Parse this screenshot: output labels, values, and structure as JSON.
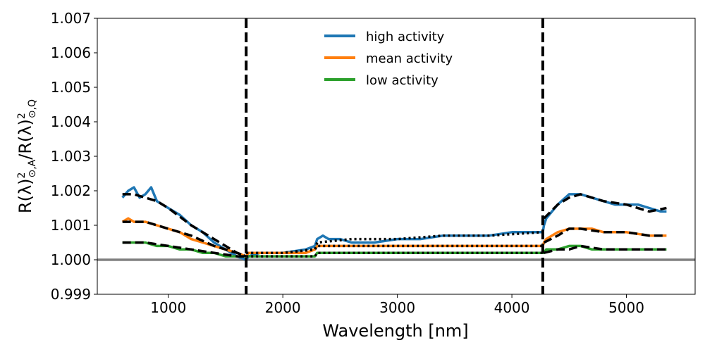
{
  "chart_data": {
    "type": "line",
    "title": "",
    "xlabel": "Wavelength [nm]",
    "ylabel": "R(λ)²⊙,A / R(λ)²⊙,Q",
    "ylabel_parts": {
      "a": "R(λ)",
      "b": "⊙,A",
      "c": "/R(λ)",
      "d": "⊙,Q",
      "sq": "2"
    },
    "xlim": [
      380,
      5600
    ],
    "ylim": [
      0.999,
      1.007
    ],
    "xticks": [
      1000,
      2000,
      3000,
      4000,
      5000
    ],
    "xtick_labels": [
      "1000",
      "2000",
      "3000",
      "4000",
      "5000"
    ],
    "yticks": [
      0.999,
      1.0,
      1.001,
      1.002,
      1.003,
      1.004,
      1.005,
      1.006,
      1.007
    ],
    "ytick_labels": [
      "0.999",
      "1.000",
      "1.001",
      "1.002",
      "1.003",
      "1.004",
      "1.005",
      "1.006",
      "1.007"
    ],
    "grid": false,
    "legend_position": "top-center",
    "reference_line": {
      "y": 1.0,
      "color": "#808080"
    },
    "vertical_lines": [
      {
        "x": 1680,
        "style": "dashed"
      },
      {
        "x": 4270,
        "style": "dashed"
      }
    ],
    "series": [
      {
        "name": "high activity",
        "color": "#1f77b4",
        "x": [
          600,
          650,
          700,
          750,
          800,
          850,
          900,
          1000,
          1100,
          1200,
          1300,
          1400,
          1500,
          1600,
          1680,
          1700,
          1800,
          2000,
          2200,
          2280,
          2300,
          2350,
          2400,
          2500,
          2600,
          2800,
          3000,
          3200,
          3400,
          3600,
          3800,
          4000,
          4200,
          4270,
          4280,
          4300,
          4400,
          4500,
          4600,
          4700,
          4800,
          4900,
          5000,
          5100,
          5200,
          5300,
          5350
        ],
        "values": [
          1.0018,
          1.002,
          1.0021,
          1.0018,
          1.0019,
          1.0021,
          1.0017,
          1.0015,
          1.0013,
          1.001,
          1.0008,
          1.0005,
          1.0003,
          1.0001,
          1.0,
          1.0001,
          1.0002,
          1.0002,
          1.0003,
          1.0004,
          1.0006,
          1.0007,
          1.0006,
          1.0006,
          1.0005,
          1.0005,
          1.0006,
          1.0006,
          1.0007,
          1.0007,
          1.0007,
          1.0008,
          1.0008,
          1.0008,
          1.001,
          1.0012,
          1.0016,
          1.0019,
          1.0019,
          1.0018,
          1.0017,
          1.0016,
          1.0016,
          1.0016,
          1.0015,
          1.0014,
          1.0014
        ]
      },
      {
        "name": "mean activity",
        "color": "#ff7f0e",
        "x": [
          600,
          650,
          700,
          800,
          900,
          1000,
          1100,
          1200,
          1300,
          1400,
          1500,
          1600,
          1680,
          1700,
          1800,
          2000,
          2200,
          2280,
          2300,
          2400,
          2600,
          2800,
          3000,
          3200,
          3400,
          3600,
          3800,
          4000,
          4200,
          4270,
          4280,
          4300,
          4400,
          4500,
          4600,
          4700,
          4800,
          5000,
          5200,
          5350
        ],
        "values": [
          1.0011,
          1.0012,
          1.0011,
          1.0011,
          1.001,
          1.0009,
          1.0008,
          1.0006,
          1.0005,
          1.0004,
          1.0003,
          1.0002,
          1.0001,
          1.0002,
          1.0002,
          1.0002,
          1.0002,
          1.0003,
          1.0004,
          1.0004,
          1.0004,
          1.0004,
          1.0004,
          1.0004,
          1.0004,
          1.0004,
          1.0004,
          1.0004,
          1.0004,
          1.0004,
          1.0005,
          1.0006,
          1.0008,
          1.0009,
          1.0009,
          1.0009,
          1.0008,
          1.0008,
          1.0007,
          1.0007
        ]
      },
      {
        "name": "low activity",
        "color": "#2ca02c",
        "x": [
          600,
          700,
          800,
          900,
          1000,
          1100,
          1200,
          1300,
          1400,
          1500,
          1600,
          1680,
          1700,
          1800,
          2000,
          2200,
          2280,
          2300,
          2400,
          2600,
          2800,
          3000,
          3200,
          3400,
          3600,
          3800,
          4000,
          4200,
          4270,
          4280,
          4300,
          4400,
          4500,
          4600,
          4700,
          4800,
          5000,
          5200,
          5350
        ],
        "values": [
          1.0005,
          1.0005,
          1.0005,
          1.0004,
          1.0004,
          1.0003,
          1.0003,
          1.0002,
          1.0002,
          1.0001,
          1.0001,
          1.0001,
          1.0001,
          1.0001,
          1.0001,
          1.0001,
          1.0001,
          1.0002,
          1.0002,
          1.0002,
          1.0002,
          1.0002,
          1.0002,
          1.0002,
          1.0002,
          1.0002,
          1.0002,
          1.0002,
          1.0002,
          1.0002,
          1.0003,
          1.0003,
          1.0004,
          1.0004,
          1.0003,
          1.0003,
          1.0003,
          1.0003,
          1.0003
        ]
      }
    ],
    "model_fits": [
      {
        "name": "high activity fit",
        "style": "dashed",
        "color": "#000000",
        "x": [
          600,
          700,
          800,
          900,
          1000,
          1200,
          1400,
          1600,
          1680
        ],
        "values": [
          1.0019,
          1.0019,
          1.0018,
          1.0017,
          1.0015,
          1.001,
          1.0006,
          1.0002,
          1.0001
        ]
      },
      {
        "name": "high activity fit (mid)",
        "style": "dotted",
        "color": "#000000",
        "x": [
          1680,
          2000,
          2280,
          2300,
          2600,
          3000,
          3400,
          3800,
          4270
        ],
        "values": [
          1.0002,
          1.0002,
          1.0003,
          1.0005,
          1.0006,
          1.0006,
          1.0007,
          1.0007,
          1.0008
        ]
      },
      {
        "name": "high activity fit (ir)",
        "style": "dashed",
        "color": "#000000",
        "x": [
          4280,
          4400,
          4500,
          4600,
          4700,
          4800,
          5000,
          5200,
          5350
        ],
        "values": [
          1.0012,
          1.0016,
          1.0018,
          1.0019,
          1.0018,
          1.0017,
          1.0016,
          1.0014,
          1.0015
        ]
      },
      {
        "name": "mean activity fit",
        "style": "dashed",
        "color": "#000000",
        "x": [
          600,
          700,
          800,
          900,
          1000,
          1200,
          1400,
          1600,
          1680
        ],
        "values": [
          1.0011,
          1.0011,
          1.0011,
          1.001,
          1.0009,
          1.0007,
          1.0004,
          1.0002,
          1.0001
        ]
      },
      {
        "name": "mean activity fit (mid)",
        "style": "dotted",
        "color": "#000000",
        "x": [
          1680,
          2000,
          2280,
          2300,
          3000,
          3600,
          4270
        ],
        "values": [
          1.0002,
          1.0002,
          1.0003,
          1.0004,
          1.0004,
          1.0004,
          1.0004
        ]
      },
      {
        "name": "mean activity fit (ir)",
        "style": "dashed",
        "color": "#000000",
        "x": [
          4280,
          4400,
          4500,
          4600,
          4800,
          5000,
          5200,
          5350
        ],
        "values": [
          1.0005,
          1.0007,
          1.0009,
          1.0009,
          1.0008,
          1.0008,
          1.0007,
          1.0007
        ]
      },
      {
        "name": "low activity fit",
        "style": "dashed",
        "color": "#000000",
        "x": [
          600,
          800,
          1000,
          1200,
          1400,
          1600,
          1680
        ],
        "values": [
          1.0005,
          1.0005,
          1.0004,
          1.0003,
          1.0002,
          1.0001,
          1.0001
        ]
      },
      {
        "name": "low activity fit (mid)",
        "style": "dotted",
        "color": "#000000",
        "x": [
          1680,
          2000,
          2280,
          2300,
          3000,
          3600,
          4270
        ],
        "values": [
          1.0001,
          1.0001,
          1.0001,
          1.0002,
          1.0002,
          1.0002,
          1.0002
        ]
      },
      {
        "name": "low activity fit (ir)",
        "style": "dashed",
        "color": "#000000",
        "x": [
          4280,
          4400,
          4500,
          4600,
          4800,
          5000,
          5200,
          5350
        ],
        "values": [
          1.0002,
          1.0003,
          1.0003,
          1.0004,
          1.0003,
          1.0003,
          1.0003,
          1.0003
        ]
      }
    ]
  }
}
